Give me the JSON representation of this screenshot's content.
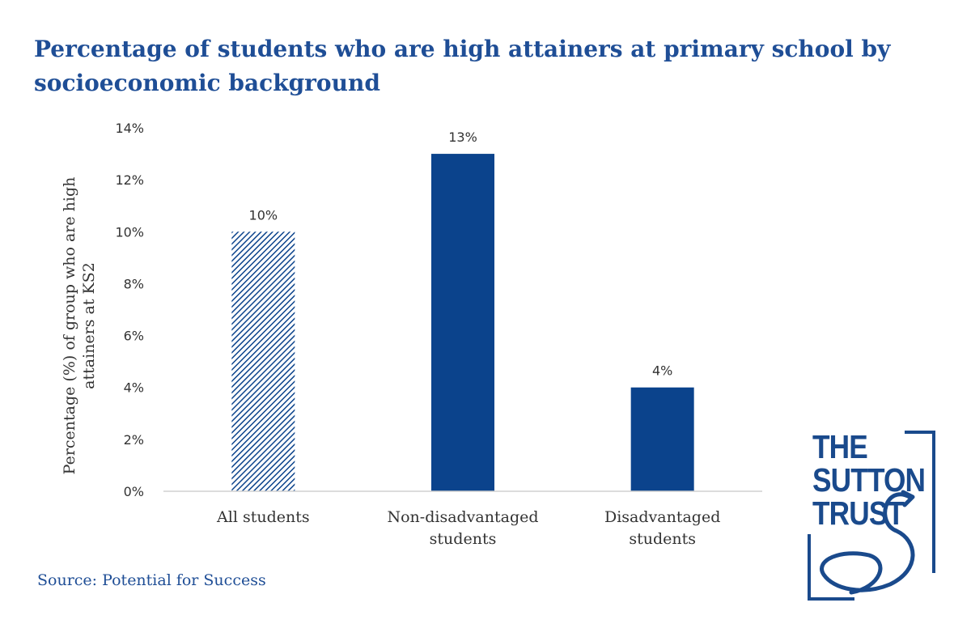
{
  "chart_data": {
    "type": "bar",
    "title": "Percentage of students who are high attainers at primary school by socioeconomic background",
    "categories": [
      [
        "All students"
      ],
      [
        "Non-disadvantaged",
        "students"
      ],
      [
        "Disadvantaged",
        "students"
      ]
    ],
    "values": [
      10,
      13,
      4
    ],
    "data_labels": [
      "10%",
      "13%",
      "4%"
    ],
    "bar_styles": [
      "hatched",
      "solid",
      "solid"
    ],
    "ylim": [
      0,
      14
    ],
    "yticks": [
      0,
      2,
      4,
      6,
      8,
      10,
      12,
      14
    ],
    "ytick_labels": [
      "0%",
      "2%",
      "4%",
      "6%",
      "8%",
      "10%",
      "12%",
      "14%"
    ],
    "ylabel": [
      "Percentage (%) of group who are high",
      "attainers at KS2"
    ],
    "xlabel": "",
    "grid": false,
    "legend": "none"
  },
  "source": "Source: Potential for Success",
  "logo": {
    "lines": [
      "THE",
      "SUTTON",
      "TRUST"
    ]
  },
  "colors": {
    "bar": "#0b438c",
    "title": "#1f4e96",
    "axis": "#d0d0d0",
    "text": "#333333"
  }
}
